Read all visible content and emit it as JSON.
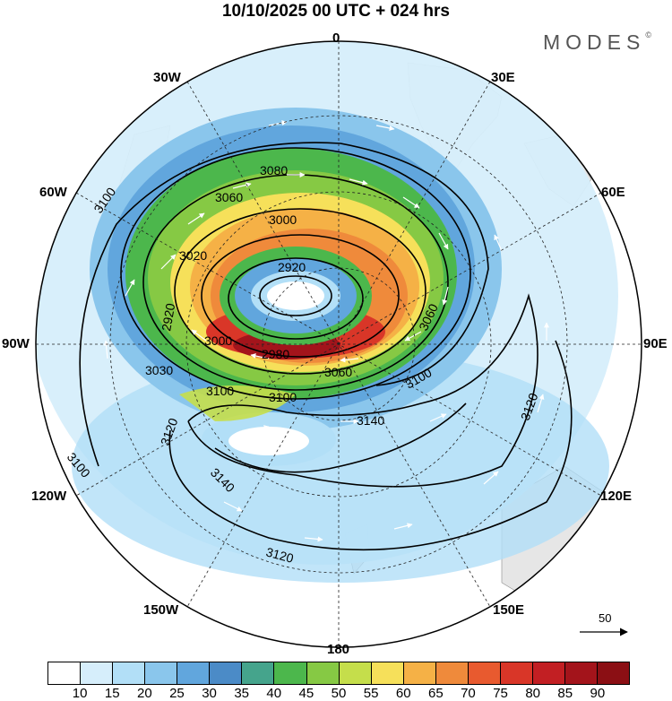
{
  "title": "10/10/2025  00 UTC  + 024 hrs",
  "brand": {
    "name": "MODES",
    "mark": "©"
  },
  "longitude_labels": [
    "0",
    "30E",
    "60E",
    "90E",
    "120E",
    "150E",
    "180",
    "150W",
    "120W",
    "90W",
    "60W",
    "30W"
  ],
  "contour_labels": [
    "3080",
    "3060",
    "3000",
    "3020",
    "2920",
    "3000",
    "2980",
    "3060",
    "3030",
    "3100",
    "3100",
    "3100",
    "3120",
    "3140",
    "3140",
    "3120",
    "3120",
    "3100",
    "3100",
    "3060",
    "2920"
  ],
  "reference_vector": {
    "value": "50"
  },
  "colorbar": {
    "ticks": [
      "10",
      "15",
      "20",
      "25",
      "30",
      "35",
      "40",
      "45",
      "50",
      "55",
      "60",
      "65",
      "70",
      "75",
      "80",
      "85",
      "90"
    ],
    "colors": [
      "#ffffff",
      "#d6eefb",
      "#b2dff7",
      "#8ac6ec",
      "#61a6dd",
      "#4b8bc7",
      "#45a48c",
      "#4cb74c",
      "#86c944",
      "#c5de4b",
      "#f6e05a",
      "#f5b146",
      "#ef8a3b",
      "#e85a2f",
      "#d93628",
      "#c21f23",
      "#a3141b",
      "#8b0f14"
    ]
  }
}
